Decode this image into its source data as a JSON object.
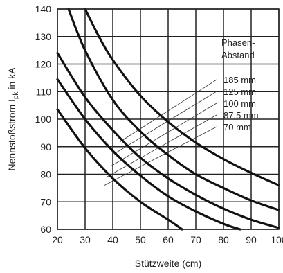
{
  "chart_data": {
    "type": "line",
    "title": "",
    "xlabel": "Stützweite (cm)",
    "ylabel": {
      "main": "Nennstoßstrom I",
      "sub": "pk",
      "suffix": " in kA"
    },
    "xlim": [
      20,
      100
    ],
    "ylim": [
      60,
      140
    ],
    "x_ticks": [
      20,
      30,
      40,
      50,
      60,
      70,
      80,
      90,
      100
    ],
    "y_ticks": [
      60,
      70,
      80,
      90,
      100,
      110,
      120,
      130,
      140
    ],
    "grid": true,
    "legend": {
      "title_line1": "Phasen-",
      "title_line2": "Abstand",
      "placement": "top-right"
    },
    "series": [
      {
        "name": "185 mm",
        "x": [
          30,
          35,
          40,
          50,
          60,
          70,
          80,
          90,
          100
        ],
        "y": [
          140,
          130,
          121.5,
          108.5,
          99,
          91.5,
          85.5,
          80.5,
          76
        ]
      },
      {
        "name": "125 mm",
        "x": [
          24,
          30,
          40,
          50,
          60,
          70,
          80,
          90,
          100
        ],
        "y": [
          140,
          125,
          107,
          95.5,
          87,
          80,
          75,
          70.5,
          67
        ]
      },
      {
        "name": "100 mm",
        "x": [
          20,
          30,
          40,
          50,
          60,
          70,
          80,
          90,
          100
        ],
        "y": [
          124,
          108,
          96,
          86,
          78.5,
          72.5,
          67.5,
          63.5,
          60.5
        ]
      },
      {
        "name": "87,5 mm",
        "x": [
          20,
          30,
          40,
          50,
          60,
          70,
          80,
          86
        ],
        "y": [
          114.5,
          100,
          88.5,
          79.5,
          72,
          66.5,
          62,
          60
        ]
      },
      {
        "name": "70 mm",
        "x": [
          20,
          30,
          40,
          50,
          60,
          65
        ],
        "y": [
          103.5,
          89.5,
          78.5,
          70,
          63.5,
          60
        ]
      }
    ]
  }
}
